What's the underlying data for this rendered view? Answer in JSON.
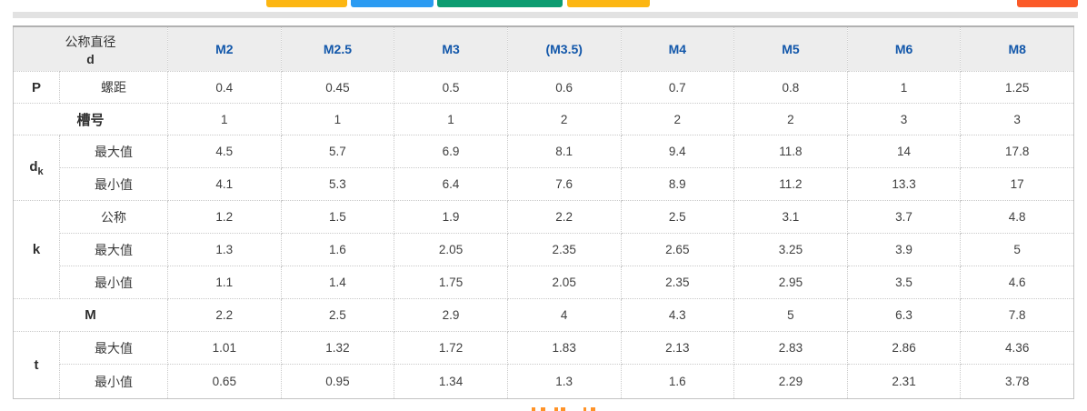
{
  "top_buttons": [
    {
      "name": "partial-button-yellow-1",
      "color": "#fcb612"
    },
    {
      "name": "partial-button-blue",
      "color": "#2b9bf2"
    },
    {
      "name": "partial-button-green",
      "color": "#0d9c71"
    },
    {
      "name": "partial-button-yellow-2",
      "color": "#fcb612"
    },
    {
      "name": "partial-button-orange",
      "color": "#fb5a28"
    }
  ],
  "bottom_fragment_color": "#ff9328",
  "colors": {
    "header_text": "#1257aa",
    "corner_bg": "#dcdcdc",
    "header_bg": "#ededed",
    "strip_bg": "#e2e2e2"
  },
  "table": {
    "corner": {
      "line1": "公称直径",
      "line2": "d"
    },
    "columns": [
      "M2",
      "M2.5",
      "M3",
      "(M3.5)",
      "M4",
      "M5",
      "M6",
      "M8"
    ],
    "rows": [
      {
        "type": "pair",
        "main": "P",
        "sub": "螺距",
        "values": [
          "0.4",
          "0.45",
          "0.5",
          "0.6",
          "0.7",
          "0.8",
          "1",
          "1.25"
        ]
      },
      {
        "type": "span",
        "label": "槽号",
        "values": [
          "1",
          "1",
          "1",
          "2",
          "2",
          "2",
          "3",
          "3"
        ]
      },
      {
        "type": "group",
        "main": "d",
        "main_subscript": "k",
        "subrows": [
          {
            "sub": "最大值",
            "values": [
              "4.5",
              "5.7",
              "6.9",
              "8.1",
              "9.4",
              "11.8",
              "14",
              "17.8"
            ]
          },
          {
            "sub": "最小值",
            "values": [
              "4.1",
              "5.3",
              "6.4",
              "7.6",
              "8.9",
              "11.2",
              "13.3",
              "17"
            ]
          }
        ]
      },
      {
        "type": "group",
        "main": "k",
        "main_subscript": "",
        "subrows": [
          {
            "sub": "公称",
            "values": [
              "1.2",
              "1.5",
              "1.9",
              "2.2",
              "2.5",
              "3.1",
              "3.7",
              "4.8"
            ]
          },
          {
            "sub": "最大值",
            "values": [
              "1.3",
              "1.6",
              "2.05",
              "2.35",
              "2.65",
              "3.25",
              "3.9",
              "5"
            ]
          },
          {
            "sub": "最小值",
            "values": [
              "1.1",
              "1.4",
              "1.75",
              "2.05",
              "2.35",
              "2.95",
              "3.5",
              "4.6"
            ]
          }
        ]
      },
      {
        "type": "span",
        "label": "M",
        "values": [
          "2.2",
          "2.5",
          "2.9",
          "4",
          "4.3",
          "5",
          "6.3",
          "7.8"
        ]
      },
      {
        "type": "group",
        "main": "t",
        "main_subscript": "",
        "subrows": [
          {
            "sub": "最大值",
            "values": [
              "1.01",
              "1.32",
              "1.72",
              "1.83",
              "2.13",
              "2.83",
              "2.86",
              "4.36"
            ]
          },
          {
            "sub": "最小值",
            "values": [
              "0.65",
              "0.95",
              "1.34",
              "1.3",
              "1.6",
              "2.29",
              "2.31",
              "3.78"
            ]
          }
        ]
      }
    ]
  }
}
